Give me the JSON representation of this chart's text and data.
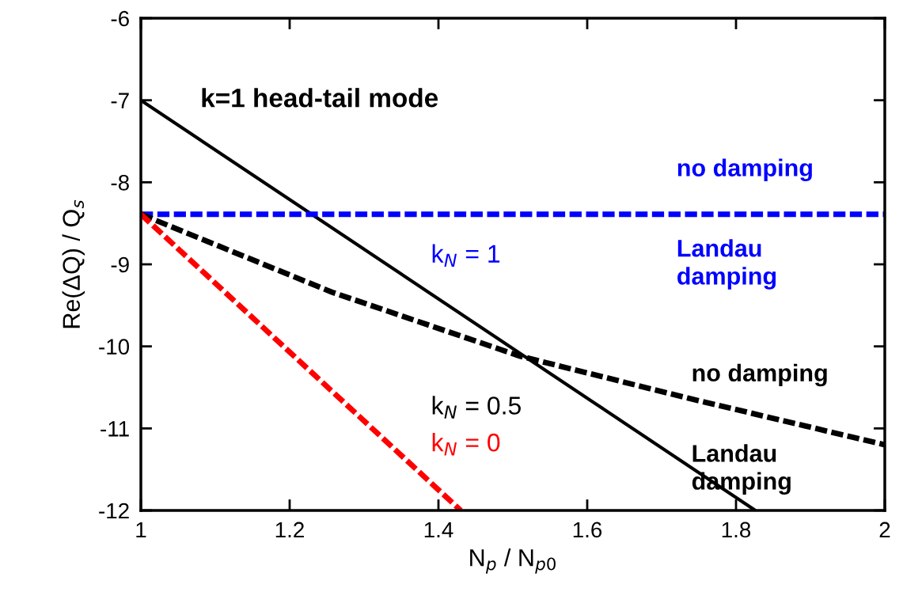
{
  "chart_data": {
    "type": "line",
    "xlabel": "N$_{p}$ / N$_{p0}$",
    "ylabel": "Re(ΔQ) / Q$_{s}$",
    "xlim": [
      1,
      2
    ],
    "ylim": [
      -12,
      -6
    ],
    "xticks": [
      1,
      1.2,
      1.4,
      1.6,
      1.8,
      2
    ],
    "yticks": [
      -12,
      -11,
      -10,
      -9,
      -8,
      -7,
      -6
    ],
    "grid": false,
    "legend": false,
    "marker": "none",
    "series": [
      {
        "color": "#000000",
        "x": [
          1,
          1.826
        ],
        "values": [
          -7,
          -12
        ],
        "line_style": "solid"
      },
      {
        "name": "k$_{N}$ = 1",
        "color": "#0000ff",
        "x": [
          1,
          2
        ],
        "values": [
          -8.39,
          -8.39
        ],
        "line_style": "dashed"
      },
      {
        "name": "k$_{N}$ = 0.5",
        "color": "#000000",
        "x": [
          1,
          1.257,
          1.51,
          1.735,
          2
        ],
        "values": [
          -8.39,
          -9.34,
          -10.12,
          -10.63,
          -11.2
        ],
        "line_style": "dashed"
      },
      {
        "name": "k$_{N}$ = 0",
        "color": "#ff0000",
        "x": [
          1,
          1.43
        ],
        "values": [
          -8.39,
          -12
        ],
        "line_style": "dashed"
      }
    ],
    "annotations": [
      "k=1 head-tail mode",
      "no damping",
      "Landau\ndamping",
      "no damping",
      "Landau\ndamping"
    ]
  }
}
